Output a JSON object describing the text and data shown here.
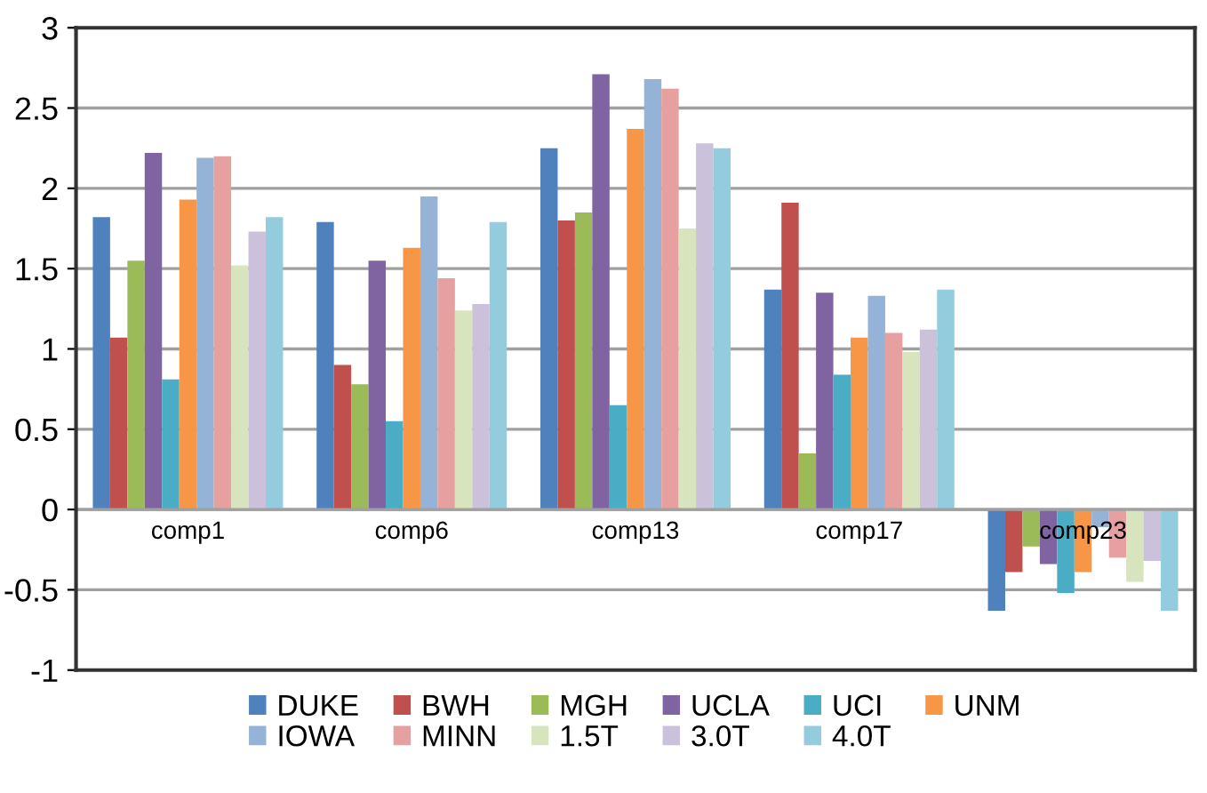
{
  "chart_data": {
    "type": "bar",
    "categories": [
      "comp1",
      "comp6",
      "comp13",
      "comp17",
      "comp23"
    ],
    "series": [
      {
        "name": "DUKE",
        "color": "#4f81bd",
        "values": [
          1.82,
          1.79,
          2.25,
          1.37,
          -0.63
        ]
      },
      {
        "name": "BWH",
        "color": "#c0504d",
        "values": [
          1.07,
          0.9,
          1.8,
          1.91,
          -0.39
        ]
      },
      {
        "name": "MGH",
        "color": "#9bbb59",
        "values": [
          1.55,
          0.78,
          1.85,
          0.35,
          -0.23
        ]
      },
      {
        "name": "UCLA",
        "color": "#8064a2",
        "values": [
          2.22,
          1.55,
          2.71,
          1.35,
          -0.34
        ]
      },
      {
        "name": "UCI",
        "color": "#4bacc6",
        "values": [
          0.81,
          0.55,
          0.65,
          0.84,
          -0.52
        ]
      },
      {
        "name": "UNM",
        "color": "#f79646",
        "values": [
          1.93,
          1.63,
          2.37,
          1.07,
          -0.39
        ]
      },
      {
        "name": "IOWA",
        "color": "#95b3d7",
        "values": [
          2.19,
          1.95,
          2.68,
          1.33,
          -0.11
        ]
      },
      {
        "name": "MINN",
        "color": "#e6a0a0",
        "values": [
          2.2,
          1.44,
          2.62,
          1.1,
          -0.3
        ]
      },
      {
        "name": "1.5T",
        "color": "#d7e4bd",
        "values": [
          1.52,
          1.24,
          1.75,
          0.98,
          -0.45
        ]
      },
      {
        "name": "3.0T",
        "color": "#ccc1da",
        "values": [
          1.73,
          1.28,
          2.28,
          1.12,
          -0.32
        ]
      },
      {
        "name": "4.0T",
        "color": "#93cddd",
        "values": [
          1.82,
          1.79,
          2.25,
          1.37,
          -0.63
        ]
      }
    ],
    "ylim": [
      -1,
      3
    ],
    "yticks": [
      -1,
      -0.5,
      0,
      0.5,
      1,
      1.5,
      2,
      2.5,
      3
    ],
    "grid": "y",
    "legend": "bottom"
  }
}
